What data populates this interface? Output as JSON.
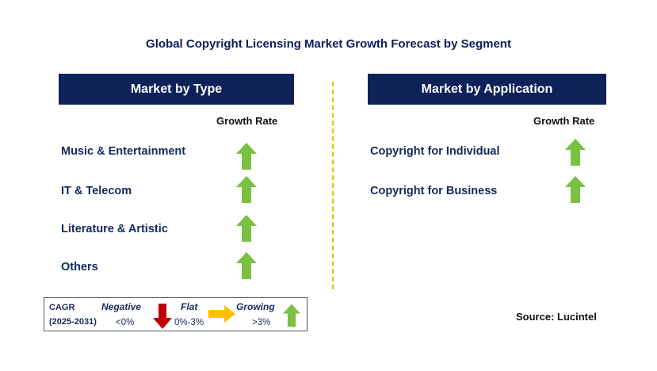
{
  "title": "Global Copyright Licensing Market Growth Forecast by Segment",
  "left_panel": {
    "header": "Market by Type",
    "column_header": "Growth Rate",
    "items": [
      {
        "label": "Music & Entertainment",
        "trend": "growing"
      },
      {
        "label": "IT & Telecom",
        "trend": "growing"
      },
      {
        "label": "Literature & Artistic",
        "trend": "growing"
      },
      {
        "label": "Others",
        "trend": "growing"
      }
    ]
  },
  "right_panel": {
    "header": "Market by Application",
    "column_header": "Growth Rate",
    "items": [
      {
        "label": "Copyright for Individual",
        "trend": "growing"
      },
      {
        "label": "Copyright for Business",
        "trend": "growing"
      }
    ]
  },
  "legend": {
    "cagr_label": "CAGR",
    "period": "(2025-2031)",
    "negative": {
      "label": "Negative",
      "range": "<0%",
      "color": "#c00000"
    },
    "flat": {
      "label": "Flat",
      "range": "0%-3%",
      "color": "#ffc000"
    },
    "growing": {
      "label": "Growing",
      "range": ">3%",
      "color": "#7ac143"
    }
  },
  "source": "Source: Lucintel",
  "colors": {
    "header_bg": "#0d2259",
    "divider": "#f2b705",
    "up_arrow": "#7ac143"
  }
}
